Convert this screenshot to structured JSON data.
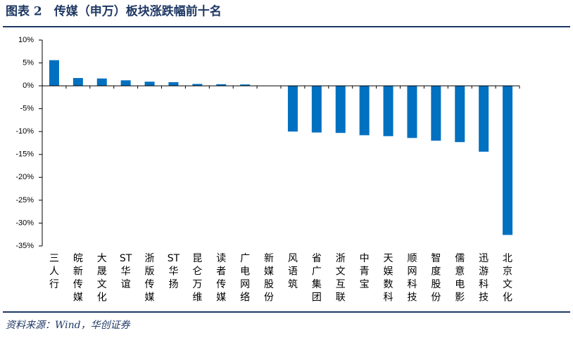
{
  "chart_data": {
    "type": "bar",
    "title": "图表 2　传媒（申万）板块涨跌幅前十名",
    "source": "资料来源：Wind，华创证券",
    "categories": [
      "三人行",
      "皖新传媒",
      "大晟文化",
      "ST华谊",
      "浙版传媒",
      "ST华扬",
      "昆仑万维",
      "读者传媒",
      "广电网络",
      "新媒股份",
      "风语筑",
      "省广集团",
      "浙文互联",
      "中青宝",
      "天娱数科",
      "顺网科技",
      "智度股份",
      "儒意电影",
      "迅游科技",
      "北京文化"
    ],
    "values": [
      5.6,
      1.7,
      1.6,
      1.2,
      0.9,
      0.8,
      0.4,
      0.35,
      0.3,
      0,
      -10.0,
      -10.2,
      -10.3,
      -10.8,
      -11.0,
      -11.4,
      -12.0,
      -12.3,
      -14.4,
      -32.6
    ],
    "color": "#0070c0",
    "ylim": [
      -35,
      10
    ],
    "yticks": [
      {
        "value": 10,
        "label": "10%"
      },
      {
        "value": 5,
        "label": "5%"
      },
      {
        "value": 0,
        "label": "0%"
      },
      {
        "value": -5,
        "label": "-5%"
      },
      {
        "value": -10,
        "label": "-10%"
      },
      {
        "value": -15,
        "label": "-15%"
      },
      {
        "value": -20,
        "label": "-20%"
      },
      {
        "value": -25,
        "label": "-25%"
      },
      {
        "value": -30,
        "label": "-30%"
      },
      {
        "value": -35,
        "label": "-35%"
      }
    ]
  }
}
